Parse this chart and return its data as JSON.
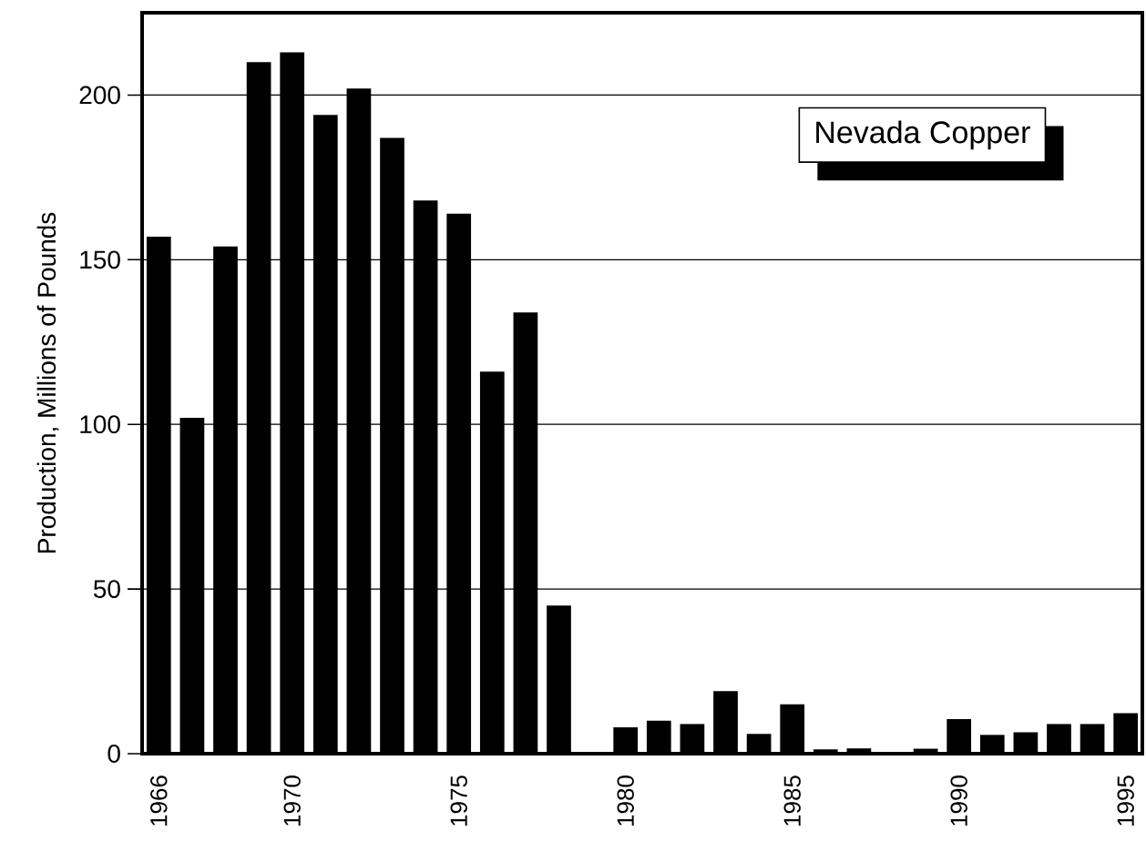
{
  "chart_data": {
    "type": "bar",
    "title": "Nevada Copper",
    "ylabel": "Production,  Millions  of  Pounds",
    "x": [
      1966,
      1967,
      1968,
      1969,
      1970,
      1971,
      1972,
      1973,
      1974,
      1975,
      1976,
      1977,
      1978,
      1979,
      1980,
      1981,
      1982,
      1983,
      1984,
      1985,
      1986,
      1987,
      1988,
      1989,
      1990,
      1991,
      1992,
      1993,
      1994,
      1995
    ],
    "values": [
      157,
      102,
      154,
      210,
      213,
      194,
      202,
      187,
      168,
      164,
      116,
      134,
      45,
      0,
      8,
      10,
      9,
      19,
      6,
      15,
      1.3,
      1.6,
      0.3,
      1.5,
      10.5,
      5.7,
      6.5,
      9,
      9,
      12.3
    ],
    "color": "#000000",
    "xlim": [
      1965.5,
      1995.5
    ],
    "xticks": [
      1966,
      1970,
      1975,
      1980,
      1985,
      1990,
      1995
    ],
    "ylim": [
      0,
      225
    ],
    "yticks": [
      0,
      50,
      100,
      150,
      200
    ],
    "grid": "y"
  }
}
